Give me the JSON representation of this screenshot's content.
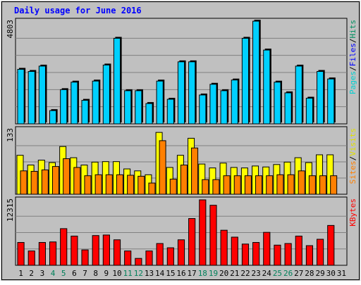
{
  "chart_data": {
    "type": "bar",
    "title": "Daily usage for June 2016",
    "categories": [
      "1",
      "2",
      "3",
      "4",
      "5",
      "6",
      "7",
      "8",
      "9",
      "10",
      "11",
      "12",
      "13",
      "14",
      "15",
      "16",
      "17",
      "18",
      "19",
      "20",
      "21",
      "22",
      "23",
      "24",
      "25",
      "26",
      "27",
      "28",
      "29",
      "30",
      "31"
    ],
    "weekend_days": [
      "4",
      "5",
      "11",
      "12",
      "18",
      "19",
      "25",
      "26"
    ],
    "panels": [
      {
        "id": "pages-files-hits",
        "max_label": "4803",
        "ylim": [
          0,
          4803
        ],
        "legend": [
          {
            "label": "Pages",
            "color": "#00d0d0"
          },
          {
            "label": "Files",
            "color": "#0000ff"
          },
          {
            "label": "Hits",
            "color": "#009060"
          }
        ],
        "series": [
          {
            "name": "Hits",
            "color": "#00d0ff",
            "values": [
              2550,
              2450,
              2700,
              620,
              1600,
              1950,
              1100,
              2000,
              2750,
              4000,
              1550,
              1550,
              950,
              2000,
              1150,
              2900,
              2900,
              1350,
              1850,
              1550,
              2050,
              4000,
              4800,
              3450,
              1950,
              1450,
              2700,
              1200,
              2450,
              2100,
              0
            ]
          }
        ]
      },
      {
        "id": "sites-visits",
        "max_label": "133",
        "ylim": [
          0,
          133
        ],
        "legend": [
          {
            "label": "Sites",
            "color": "#ff8000"
          },
          {
            "label": "Visits",
            "color": "#e0e000"
          }
        ],
        "series": [
          {
            "name": "Visits",
            "color": "#ffff00",
            "values": [
              80,
              60,
              70,
              65,
              98,
              75,
              60,
              66,
              67,
              67,
              52,
              48,
              40,
              127,
              55,
              80,
              115,
              62,
              54,
              64,
              55,
              54,
              58,
              56,
              61,
              66,
              75,
              65,
              81,
              81,
              0
            ]
          },
          {
            "name": "Sites",
            "color": "#ff8000",
            "values": [
              48,
              47,
              50,
              57,
              73,
              55,
              38,
              40,
              40,
              40,
              39,
              37,
              23,
              110,
              31,
              60,
              95,
              30,
              30,
              38,
              38,
              38,
              38,
              38,
              40,
              40,
              48,
              38,
              38,
              38,
              0
            ]
          }
        ]
      },
      {
        "id": "kbytes",
        "max_label": "12315",
        "ylim": [
          0,
          12315
        ],
        "legend": [
          {
            "label": "KBytes",
            "color": "#ff0000"
          }
        ],
        "series": [
          {
            "name": "KBytes",
            "color": "#ff0000",
            "values": [
              4300,
              2700,
              4300,
              4400,
              6900,
              5500,
              2900,
              5600,
              5700,
              4800,
              2700,
              1300,
              2700,
              4100,
              3300,
              4800,
              8800,
              12315,
              11300,
              6600,
              5300,
              4000,
              4300,
              6200,
              3800,
              4100,
              5500,
              3700,
              4900,
              7500,
              0
            ]
          }
        ]
      }
    ]
  },
  "colors": {
    "background": "#c0c0c0",
    "grid": "#808080",
    "title": "#0000ff",
    "weekday_label": "#000000",
    "weekend_label": "#00805a"
  }
}
